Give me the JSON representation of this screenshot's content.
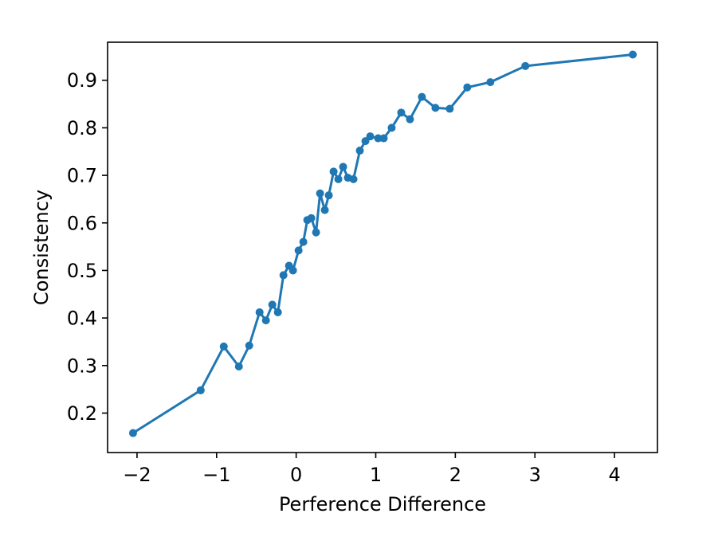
{
  "chart_data": {
    "type": "line",
    "title": "",
    "xlabel": "Perference Difference",
    "ylabel": "Consistency",
    "xlim": [
      -2.37,
      4.54
    ],
    "ylim": [
      0.117,
      0.98
    ],
    "xticks": [
      -2,
      -1,
      0,
      1,
      2,
      3,
      4
    ],
    "xtick_labels": [
      "−2",
      "−1",
      "0",
      "1",
      "2",
      "3",
      "4"
    ],
    "yticks": [
      0.2,
      0.3,
      0.4,
      0.5,
      0.6,
      0.7,
      0.8,
      0.9
    ],
    "ytick_labels": [
      "0.2",
      "0.3",
      "0.4",
      "0.5",
      "0.6",
      "0.7",
      "0.8",
      "0.9"
    ],
    "grid": false,
    "legend": false,
    "series": [
      {
        "color": "#1f77b4",
        "marker": "circle",
        "x": [
          -2.05,
          -1.2,
          -0.91,
          -0.72,
          -0.59,
          -0.46,
          -0.38,
          -0.3,
          -0.23,
          -0.16,
          -0.09,
          -0.04,
          0.03,
          0.09,
          0.14,
          0.19,
          0.25,
          0.3,
          0.36,
          0.41,
          0.47,
          0.53,
          0.59,
          0.65,
          0.72,
          0.8,
          0.87,
          0.93,
          1.03,
          1.1,
          1.2,
          1.32,
          1.43,
          1.58,
          1.75,
          1.93,
          2.15,
          2.44,
          2.88,
          4.23
        ],
        "y": [
          0.158,
          0.248,
          0.34,
          0.298,
          0.342,
          0.412,
          0.395,
          0.428,
          0.412,
          0.49,
          0.51,
          0.5,
          0.542,
          0.56,
          0.606,
          0.61,
          0.58,
          0.662,
          0.627,
          0.658,
          0.708,
          0.692,
          0.718,
          0.695,
          0.692,
          0.752,
          0.772,
          0.782,
          0.778,
          0.778,
          0.8,
          0.832,
          0.818,
          0.865,
          0.842,
          0.84,
          0.885,
          0.896,
          0.93,
          0.954
        ]
      }
    ]
  }
}
